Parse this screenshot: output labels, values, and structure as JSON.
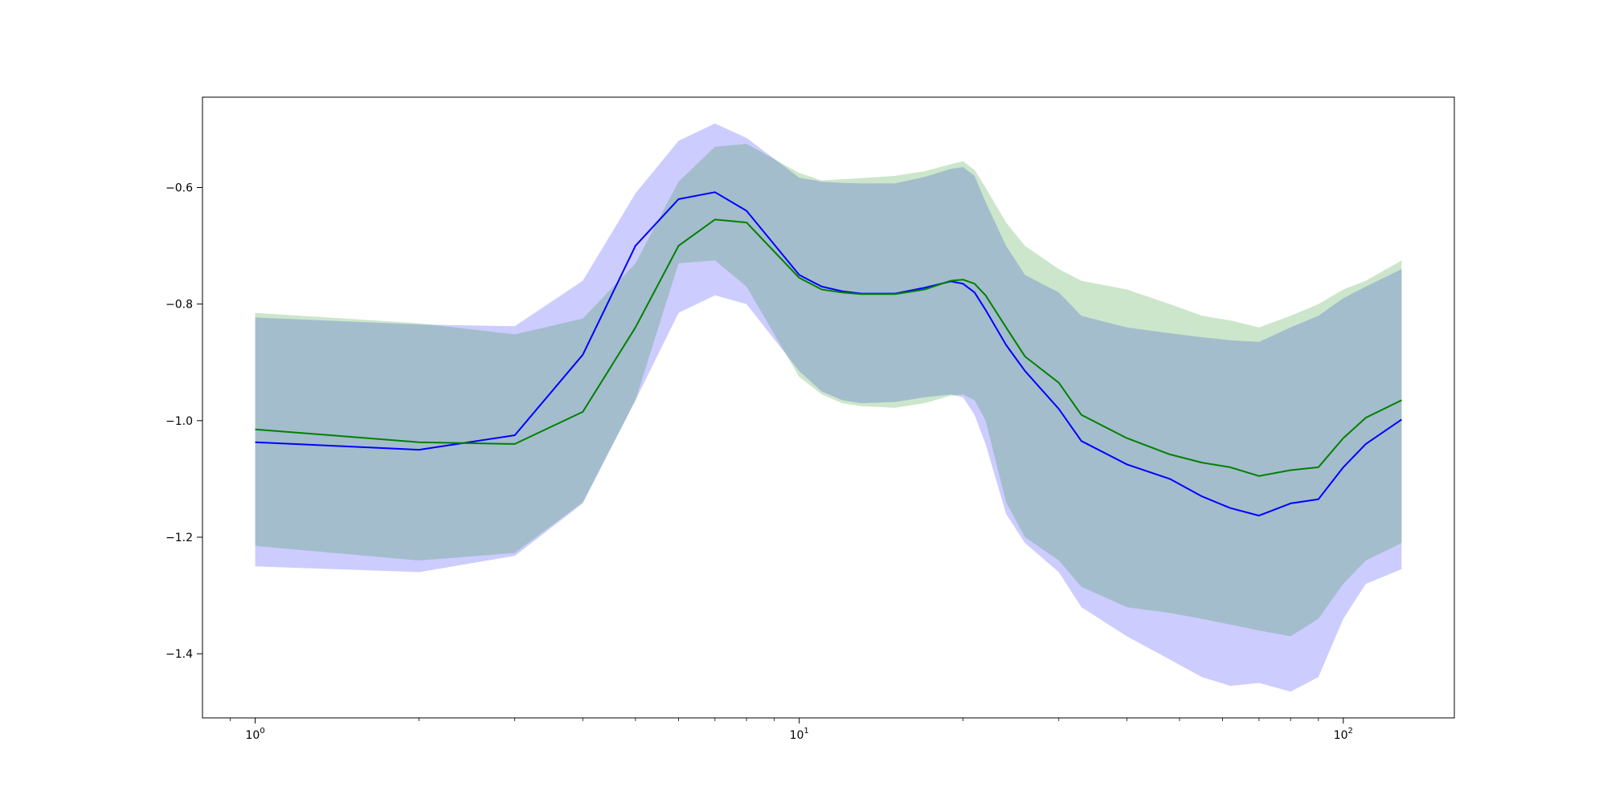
{
  "chart_data": {
    "type": "line",
    "title": "",
    "xlabel": "",
    "ylabel": "",
    "xscale": "log",
    "xlim": [
      0.8,
      160
    ],
    "ylim": [
      -1.51,
      -0.445
    ],
    "grid": false,
    "legend": "none",
    "x_ticks": [
      {
        "value": 1,
        "base": "10",
        "exp": "0"
      },
      {
        "value": 10,
        "base": "10",
        "exp": "1"
      },
      {
        "value": 100,
        "base": "10",
        "exp": "2"
      }
    ],
    "y_ticks": [
      {
        "value": -0.6,
        "label": "−0.6"
      },
      {
        "value": -0.8,
        "label": "−0.8"
      },
      {
        "value": -1.0,
        "label": "−1.0"
      },
      {
        "value": -1.2,
        "label": "−1.2"
      },
      {
        "value": -1.4,
        "label": "−1.4"
      }
    ],
    "series": [
      {
        "color": "#0000ff",
        "band_color": "#0000ff",
        "band_opacity": 0.2,
        "x": [
          1,
          2,
          3,
          4,
          5,
          6,
          7,
          8,
          10,
          11,
          12,
          13,
          15,
          17,
          19,
          20,
          21,
          22,
          24,
          26,
          30,
          33,
          40,
          48,
          55,
          62,
          70,
          80,
          90,
          100,
          110,
          128
        ],
        "y": [
          -1.037,
          -1.05,
          -1.025,
          -0.887,
          -0.7,
          -0.62,
          -0.608,
          -0.64,
          -0.75,
          -0.77,
          -0.778,
          -0.782,
          -0.782,
          -0.772,
          -0.761,
          -0.765,
          -0.78,
          -0.81,
          -0.87,
          -0.915,
          -0.98,
          -1.035,
          -1.075,
          -1.1,
          -1.13,
          -1.15,
          -1.163,
          -1.142,
          -1.135,
          -1.08,
          -1.04,
          -0.998
        ],
        "upper": [
          -0.823,
          -0.835,
          -0.838,
          -0.76,
          -0.61,
          -0.52,
          -0.49,
          -0.515,
          -0.583,
          -0.59,
          -0.592,
          -0.593,
          -0.593,
          -0.582,
          -0.568,
          -0.565,
          -0.58,
          -0.625,
          -0.7,
          -0.75,
          -0.78,
          -0.82,
          -0.84,
          -0.85,
          -0.857,
          -0.862,
          -0.865,
          -0.84,
          -0.82,
          -0.79,
          -0.77,
          -0.74
        ],
        "lower": [
          -1.25,
          -1.26,
          -1.232,
          -1.142,
          -0.965,
          -0.815,
          -0.785,
          -0.8,
          -0.915,
          -0.95,
          -0.965,
          -0.97,
          -0.968,
          -0.96,
          -0.955,
          -0.96,
          -0.99,
          -1.04,
          -1.16,
          -1.21,
          -1.26,
          -1.32,
          -1.37,
          -1.41,
          -1.44,
          -1.455,
          -1.45,
          -1.465,
          -1.44,
          -1.34,
          -1.28,
          -1.255
        ]
      },
      {
        "color": "#008000",
        "band_color": "#008000",
        "band_opacity": 0.2,
        "x": [
          1,
          2,
          3,
          4,
          5,
          6,
          7,
          8,
          10,
          11,
          12,
          13,
          15,
          17,
          19,
          20,
          21,
          22,
          24,
          26,
          30,
          33,
          40,
          48,
          55,
          62,
          70,
          80,
          90,
          100,
          110,
          128
        ],
        "y": [
          -1.015,
          -1.037,
          -1.04,
          -0.985,
          -0.84,
          -0.7,
          -0.655,
          -0.66,
          -0.755,
          -0.775,
          -0.78,
          -0.783,
          -0.783,
          -0.775,
          -0.76,
          -0.758,
          -0.765,
          -0.785,
          -0.84,
          -0.89,
          -0.935,
          -0.99,
          -1.03,
          -1.058,
          -1.072,
          -1.08,
          -1.095,
          -1.085,
          -1.08,
          -1.03,
          -0.995,
          -0.965
        ],
        "upper": [
          -0.815,
          -0.833,
          -0.852,
          -0.825,
          -0.73,
          -0.59,
          -0.53,
          -0.525,
          -0.575,
          -0.588,
          -0.586,
          -0.584,
          -0.58,
          -0.572,
          -0.56,
          -0.555,
          -0.57,
          -0.6,
          -0.66,
          -0.7,
          -0.74,
          -0.76,
          -0.775,
          -0.8,
          -0.82,
          -0.828,
          -0.84,
          -0.82,
          -0.8,
          -0.775,
          -0.76,
          -0.725
        ],
        "lower": [
          -1.215,
          -1.24,
          -1.227,
          -1.14,
          -0.965,
          -0.73,
          -0.725,
          -0.77,
          -0.925,
          -0.955,
          -0.97,
          -0.975,
          -0.978,
          -0.97,
          -0.957,
          -0.955,
          -0.965,
          -1.0,
          -1.14,
          -1.2,
          -1.24,
          -1.285,
          -1.32,
          -1.33,
          -1.34,
          -1.35,
          -1.36,
          -1.37,
          -1.34,
          -1.28,
          -1.24,
          -1.21
        ]
      }
    ]
  }
}
